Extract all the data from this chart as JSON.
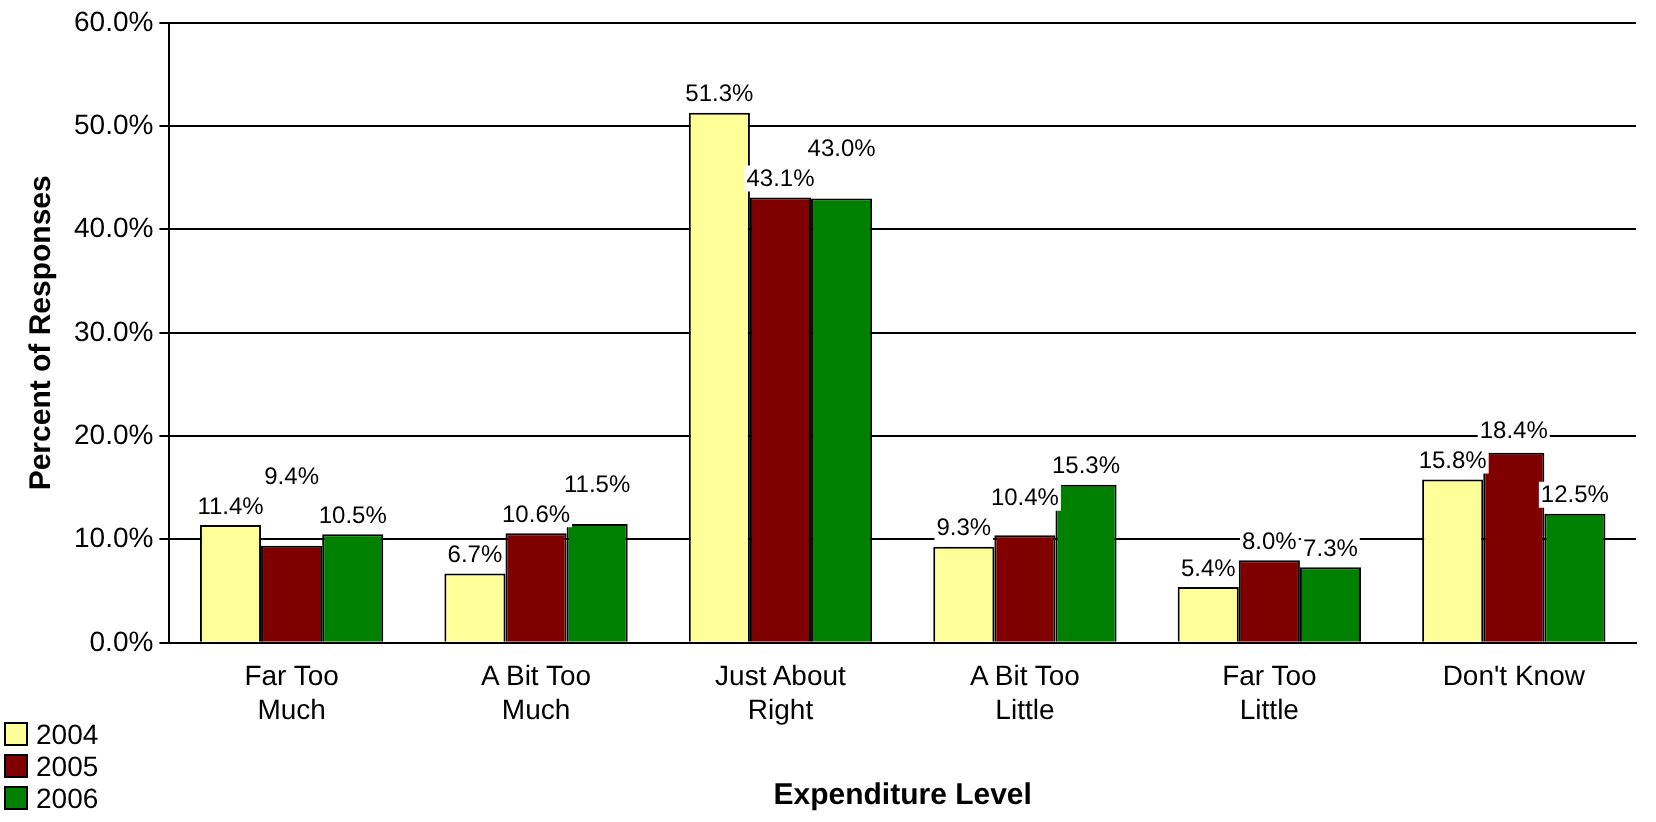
{
  "chart_data": {
    "type": "bar",
    "xlabel": "Expenditure Level",
    "ylabel": "Percent of Responses",
    "categories": [
      "Far Too Much",
      "A Bit Too Much",
      "Just About Right",
      "A Bit Too Little",
      "Far Too Little",
      "Don't Know"
    ],
    "series": [
      {
        "name": "2004",
        "color": "#ffff99",
        "values": [
          11.4,
          6.7,
          51.3,
          9.3,
          5.4,
          15.8
        ],
        "value_labels": [
          "11.4%",
          "6.7%",
          "51.3%",
          "9.3%",
          "5.4%",
          "15.8%"
        ]
      },
      {
        "name": "2005",
        "color": "#800000",
        "values": [
          9.4,
          10.6,
          43.1,
          10.4,
          8.0,
          18.4
        ],
        "value_labels": [
          "9.4%",
          "10.6%",
          "43.1%",
          "10.4%",
          "8.0%",
          "18.4%"
        ]
      },
      {
        "name": "2006",
        "color": "#008000",
        "values": [
          10.5,
          11.5,
          43.0,
          15.3,
          7.3,
          12.5
        ],
        "value_labels": [
          "10.5%",
          "11.5%",
          "43.0%",
          "15.3%",
          "7.3%",
          "12.5%"
        ]
      }
    ],
    "ylim": [
      0,
      60
    ],
    "yticks": [
      {
        "value": 0,
        "label": "0.0%"
      },
      {
        "value": 10,
        "label": "10.0%"
      },
      {
        "value": 20,
        "label": "20.0%"
      },
      {
        "value": 30,
        "label": "30.0%"
      },
      {
        "value": 40,
        "label": "40.0%"
      },
      {
        "value": 50,
        "label": "50.0%"
      },
      {
        "value": 60,
        "label": "60.0%"
      }
    ],
    "grid": "y",
    "legend": "bottom left"
  }
}
